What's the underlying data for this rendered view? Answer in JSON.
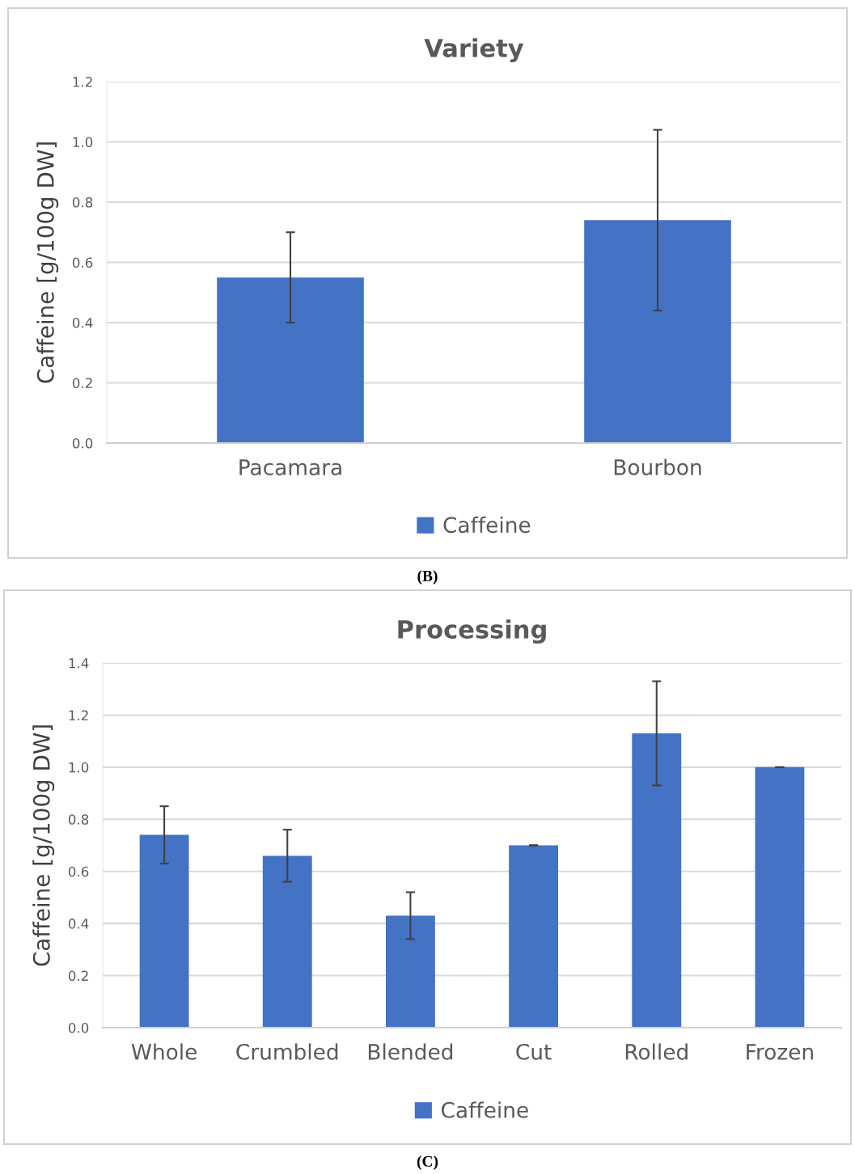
{
  "chart_data": [
    {
      "type": "bar",
      "title": "Variety",
      "ylabel": "Caffeine [g/100g DW]",
      "categories": [
        "Pacamara",
        "Bourbon"
      ],
      "series": [
        {
          "name": "Caffeine",
          "color": "#4472c4",
          "values": [
            0.55,
            0.74
          ],
          "errors": [
            0.15,
            0.3
          ]
        }
      ],
      "ylim": [
        0,
        1.2
      ],
      "yticks": [
        {
          "value": 0,
          "label": "0.0"
        },
        {
          "value": 0.2,
          "label": "0.2"
        },
        {
          "value": 0.4,
          "label": "0.4"
        },
        {
          "value": 0.6,
          "label": "0.6"
        },
        {
          "value": 0.8,
          "label": "0.8"
        },
        {
          "value": 1.0,
          "label": "1.0"
        },
        {
          "value": 1.2,
          "label": "1.2"
        }
      ],
      "grid": "y",
      "legend": "bottom",
      "annotations": [
        "(B)"
      ]
    },
    {
      "type": "bar",
      "title": "Processing",
      "ylabel": "Caffeine [g/100g DW]",
      "categories": [
        "Whole",
        "Crumbled",
        "Blended",
        "Cut",
        "Rolled",
        "Frozen"
      ],
      "series": [
        {
          "name": "Caffeine",
          "color": "#4472c4",
          "values": [
            0.74,
            0.66,
            0.43,
            0.7,
            1.13,
            1.0
          ],
          "errors": [
            0.11,
            0.1,
            0.09,
            0,
            0.2,
            0
          ]
        }
      ],
      "ylim": [
        0,
        1.4
      ],
      "yticks": [
        {
          "value": 0,
          "label": "0.0"
        },
        {
          "value": 0.2,
          "label": "0.2"
        },
        {
          "value": 0.4,
          "label": "0.4"
        },
        {
          "value": 0.6,
          "label": "0.6"
        },
        {
          "value": 0.8,
          "label": "0.8"
        },
        {
          "value": 1.0,
          "label": "1.0"
        },
        {
          "value": 1.2,
          "label": "1.2"
        },
        {
          "value": 1.4,
          "label": "1.4"
        }
      ],
      "grid": "y",
      "legend": "bottom",
      "annotations": [
        "(C)"
      ]
    }
  ]
}
